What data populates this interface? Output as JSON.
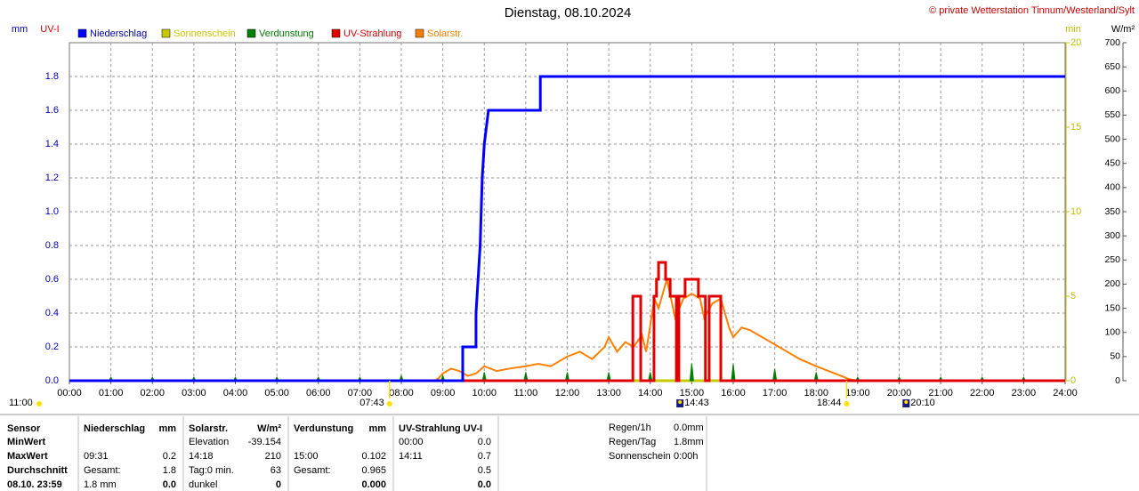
{
  "chart_data": {
    "type": "line",
    "title": "Dienstag, 08.10.2024",
    "source": "© private Wetterstation Tinnum/Westerland/Sylt",
    "y_unit": "mm",
    "uv_unit": "UV-I",
    "y3_unit": "min",
    "y2_unit": "W/m²",
    "xlim": [
      0,
      24
    ],
    "xticks": [
      {
        "value": 0,
        "label": "00:00"
      },
      {
        "value": 1,
        "label": "01:00"
      },
      {
        "value": 2,
        "label": "02:00"
      },
      {
        "value": 3,
        "label": "03:00"
      },
      {
        "value": 4,
        "label": "04:00"
      },
      {
        "value": 5,
        "label": "05:00"
      },
      {
        "value": 6,
        "label": "06:00"
      },
      {
        "value": 7,
        "label": "07:00"
      },
      {
        "value": 8,
        "label": "08:00"
      },
      {
        "value": 9,
        "label": "09:00"
      },
      {
        "value": 10,
        "label": "10:00"
      },
      {
        "value": 11,
        "label": "11:00"
      },
      {
        "value": 12,
        "label": "12:00"
      },
      {
        "value": 13,
        "label": "13:00"
      },
      {
        "value": 14,
        "label": "14:00"
      },
      {
        "value": 15,
        "label": "15:00"
      },
      {
        "value": 16,
        "label": "16:00"
      },
      {
        "value": 17,
        "label": "17:00"
      },
      {
        "value": 18,
        "label": "18:00"
      },
      {
        "value": 19,
        "label": "19:00"
      },
      {
        "value": 20,
        "label": "20:00"
      },
      {
        "value": 21,
        "label": "21:00"
      },
      {
        "value": 22,
        "label": "22:00"
      },
      {
        "value": 23,
        "label": "23:00"
      },
      {
        "value": 24,
        "label": "24:00"
      }
    ],
    "ylim": [
      0,
      2
    ],
    "yticks": [
      {
        "value": 0,
        "label": "0.0"
      },
      {
        "value": 0.2,
        "label": "0.2"
      },
      {
        "value": 0.4,
        "label": "0.4"
      },
      {
        "value": 0.6,
        "label": "0.6"
      },
      {
        "value": 0.8,
        "label": "0.8"
      },
      {
        "value": 1,
        "label": "1.0"
      },
      {
        "value": 1.2,
        "label": "1.2"
      },
      {
        "value": 1.4,
        "label": "1.4"
      },
      {
        "value": 1.6,
        "label": "1.6"
      },
      {
        "value": 1.8,
        "label": "1.8"
      }
    ],
    "y3lim": [
      0,
      20
    ],
    "y3ticks": [
      0,
      5,
      10,
      15,
      20
    ],
    "y2lim": [
      0,
      700
    ],
    "y2ticks": [
      0,
      50,
      100,
      150,
      200,
      250,
      300,
      350,
      400,
      450,
      500,
      550,
      600,
      650,
      700
    ],
    "grid": true,
    "series": [
      {
        "name": "Niederschlag",
        "color": "#0000ff",
        "axis": "y",
        "draw": "line",
        "x": [
          0,
          9.48,
          9.48,
          9.8,
          9.8,
          9.9,
          9.95,
          10.0,
          10.05,
          10.1,
          11.35,
          11.35,
          24
        ],
        "values": [
          0,
          0,
          0.2,
          0.2,
          0.4,
          0.8,
          1.2,
          1.4,
          1.5,
          1.6,
          1.6,
          1.8,
          1.8
        ]
      },
      {
        "name": "Sonnenschein",
        "color": "#c8c800",
        "axis": "y3",
        "draw": "line",
        "x": [
          0,
          24
        ],
        "values": [
          0,
          0
        ]
      },
      {
        "name": "Verdunstung",
        "color": "#008000",
        "axis": "y",
        "draw": "spike",
        "x": [
          1,
          2,
          3,
          4,
          5,
          6,
          7,
          8,
          9,
          10,
          11,
          12,
          13,
          14,
          15,
          16,
          17,
          18,
          19,
          20,
          21,
          22,
          23
        ],
        "values": [
          0.02,
          0.02,
          0.02,
          0.02,
          0.02,
          0.02,
          0.02,
          0.03,
          0.03,
          0.05,
          0.05,
          0.05,
          0.05,
          0.05,
          0.102,
          0.1,
          0.07,
          0.05,
          0.02,
          0.02,
          0.02,
          0.02,
          0.02
        ]
      },
      {
        "name": "UV-Strahlung",
        "color": "#e00000",
        "axis": "y",
        "draw": "line",
        "x": [
          0,
          13.58,
          13.58,
          13.77,
          13.77,
          14.09,
          14.09,
          14.15,
          14.15,
          14.2,
          14.2,
          14.37,
          14.37,
          14.48,
          14.48,
          14.63,
          14.63,
          14.69,
          14.69,
          14.84,
          14.84,
          15.16,
          15.16,
          15.33,
          15.33,
          15.42,
          15.42,
          15.7,
          15.7,
          24
        ],
        "values": [
          0,
          0,
          0.5,
          0.5,
          0,
          0,
          0.5,
          0.5,
          0.6,
          0.6,
          0.7,
          0.7,
          0.6,
          0.6,
          0.5,
          0.5,
          0,
          0,
          0.5,
          0.5,
          0.6,
          0.6,
          0.5,
          0.5,
          0,
          0,
          0.5,
          0.5,
          0,
          0
        ]
      },
      {
        "name": "Solarstr.",
        "color": "#ff8000",
        "axis": "y2",
        "draw": "line",
        "x": [
          0,
          8.8,
          8.9,
          9.0,
          9.2,
          9.4,
          9.6,
          9.8,
          10.0,
          10.3,
          10.6,
          11.0,
          11.3,
          11.6,
          12.0,
          12.3,
          12.6,
          12.9,
          13.0,
          13.2,
          13.4,
          13.6,
          13.8,
          13.9,
          14.1,
          14.2,
          14.4,
          14.5,
          14.6,
          14.8,
          15.0,
          15.2,
          15.3,
          15.5,
          15.7,
          15.8,
          15.9,
          16.0,
          16.2,
          16.4,
          16.7,
          17.0,
          17.3,
          17.6,
          18.0,
          18.3,
          18.6,
          18.8,
          19.0,
          24
        ],
        "values": [
          0,
          0,
          5,
          15,
          25,
          20,
          10,
          15,
          30,
          20,
          25,
          30,
          35,
          30,
          50,
          60,
          45,
          70,
          90,
          60,
          80,
          70,
          95,
          60,
          170,
          150,
          210,
          170,
          130,
          170,
          180,
          170,
          130,
          160,
          170,
          140,
          110,
          90,
          110,
          105,
          90,
          75,
          60,
          45,
          30,
          20,
          10,
          3,
          0,
          0
        ]
      }
    ],
    "markers": [
      "11:00",
      "07:43",
      "14:43",
      "18:44",
      "20:10"
    ]
  },
  "table": {
    "rows": [
      [
        "Sensor",
        "Niederschlag",
        "mm",
        "Solarstr.",
        "W/m²",
        "Verdunstung",
        "mm",
        "UV-Strahlung UV-I",
        null
      ],
      [
        "MinWert",
        null,
        null,
        "Elevation",
        "-39.154",
        null,
        null,
        "00:00",
        "0.0"
      ],
      [
        "MaxWert",
        "09:31",
        "0.2",
        "14:18",
        "210",
        "15:00",
        "0.102",
        "14:11",
        "0.7"
      ],
      [
        "Durchschnitt",
        "Gesamt:",
        "1.8",
        "Tag:0 min.",
        "63",
        "Gesamt:",
        "0.965",
        null,
        "0.5"
      ],
      [
        "08.10. 23:59",
        "1.8 mm",
        "0.0",
        "dunkel",
        "0",
        null,
        "0.000",
        null,
        "0.0"
      ]
    ]
  },
  "summary": {
    "rows": [
      [
        "Regen/1h",
        "0.0mm"
      ],
      [
        "Regen/Tag",
        "1.8mm"
      ],
      [
        "Sonnenschein",
        "0:00h"
      ]
    ]
  }
}
